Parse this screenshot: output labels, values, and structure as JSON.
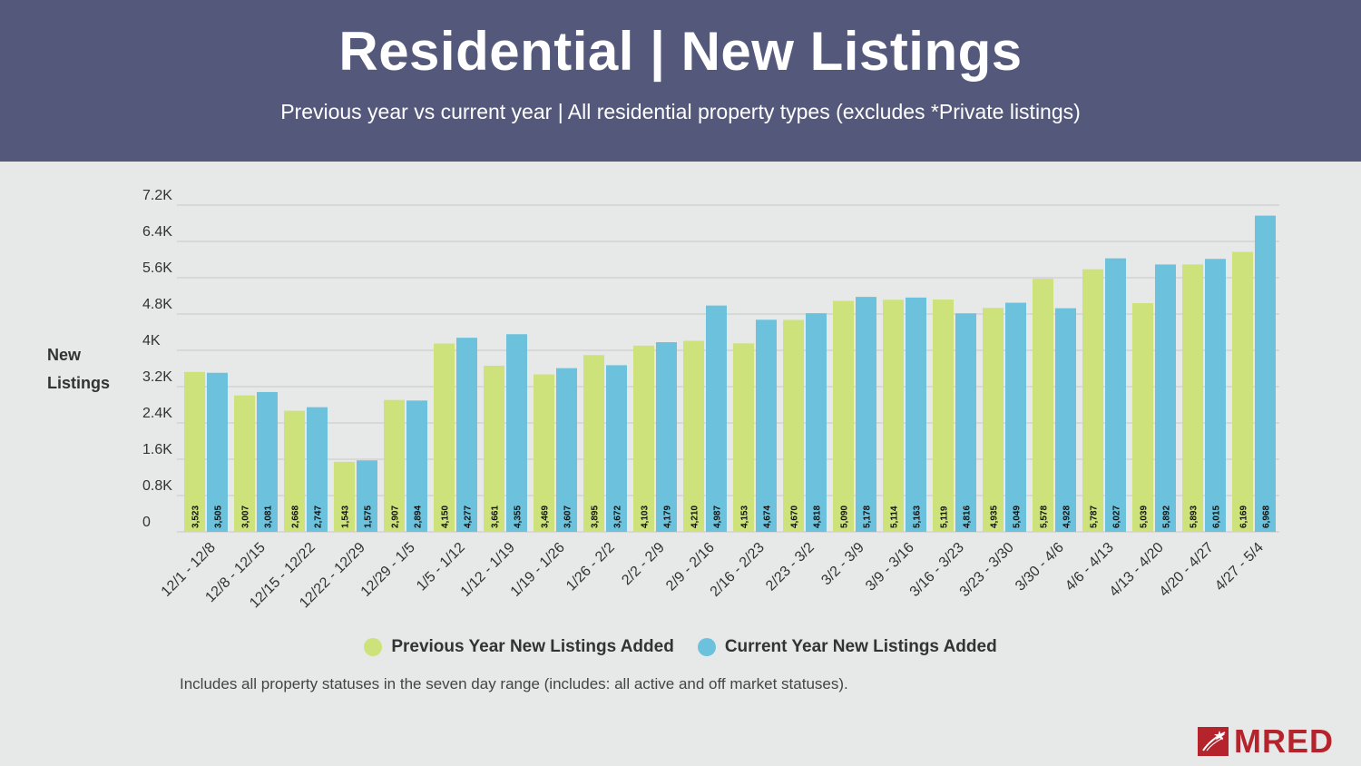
{
  "header": {
    "title": "Residential | New Listings",
    "subtitle": "Previous year vs current year | All residential property types (excludes *Private listings)"
  },
  "colors": {
    "header_bg": "#54597c",
    "previous_year": "#cde27b",
    "current_year": "#6cc2dc",
    "logo": "#b5242c"
  },
  "chart_data": {
    "type": "bar",
    "ylabel": [
      "New",
      "Listings"
    ],
    "ylim": [
      0,
      7200
    ],
    "yticks": [
      {
        "value": 0,
        "label": "0"
      },
      {
        "value": 800,
        "label": "0.8K"
      },
      {
        "value": 1600,
        "label": "1.6K"
      },
      {
        "value": 2400,
        "label": "2.4K"
      },
      {
        "value": 3200,
        "label": "3.2K"
      },
      {
        "value": 4000,
        "label": "4K"
      },
      {
        "value": 4800,
        "label": "4.8K"
      },
      {
        "value": 5600,
        "label": "5.6K"
      },
      {
        "value": 6400,
        "label": "6.4K"
      },
      {
        "value": 7200,
        "label": "7.2K"
      }
    ],
    "grid": true,
    "legend_position": "bottom",
    "categories": [
      "12/1 - 12/8",
      "12/8 - 12/15",
      "12/15 - 12/22",
      "12/22 - 12/29",
      "12/29 - 1/5",
      "1/5 - 1/12",
      "1/12 - 1/19",
      "1/19 - 1/26",
      "1/26 - 2/2",
      "2/2 - 2/9",
      "2/9 - 2/16",
      "2/16 - 2/23",
      "2/23 - 3/2",
      "3/2 - 3/9",
      "3/9 - 3/16",
      "3/16 - 3/23",
      "3/23 - 3/30",
      "3/30 - 4/6",
      "4/6 - 4/13",
      "4/13 - 4/20",
      "4/20 - 4/27",
      "4/27 - 5/4"
    ],
    "series": [
      {
        "name": "Previous Year New Listings Added",
        "color": "#cde27b",
        "values": [
          3523,
          3007,
          2668,
          1543,
          2907,
          4150,
          3661,
          3469,
          3895,
          4103,
          4210,
          4153,
          4670,
          5090,
          5114,
          5119,
          4935,
          5578,
          5787,
          5039,
          5893,
          6169
        ],
        "labels": [
          "3,523",
          "3,007",
          "2,668",
          "1,543",
          "2,907",
          "4,150",
          "3,661",
          "3,469",
          "3,895",
          "4,103",
          "4,210",
          "4,153",
          "4,670",
          "5,090",
          "5,114",
          "5,119",
          "4,935",
          "5,578",
          "5,787",
          "5,039",
          "5,893",
          "6,169"
        ]
      },
      {
        "name": "Current Year New Listings Added",
        "color": "#6cc2dc",
        "values": [
          3505,
          3081,
          2747,
          1575,
          2894,
          4277,
          4355,
          3607,
          3672,
          4179,
          4987,
          4674,
          4818,
          5178,
          5163,
          4816,
          5049,
          4928,
          6027,
          5892,
          6015,
          6968
        ],
        "labels": [
          "3,505",
          "3,081",
          "2,747",
          "1,575",
          "2,894",
          "4,277",
          "4,355",
          "3,607",
          "3,672",
          "4,179",
          "4,987",
          "4,674",
          "4,818",
          "5,178",
          "5,163",
          "4,816",
          "5,049",
          "4,928",
          "6,027",
          "5,892",
          "6,015",
          "6,968"
        ]
      }
    ]
  },
  "footnote": "Includes all property statuses in the seven day range (includes: all active and off market statuses).",
  "logo": {
    "text": "MRED",
    "icon": "mred-star-icon"
  }
}
